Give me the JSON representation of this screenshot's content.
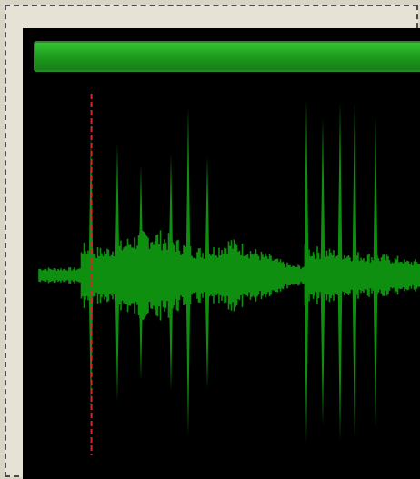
{
  "colors": {
    "waveform": "#0f8f0f",
    "playhead": "#cc2b2b",
    "background": "#000000",
    "progress": "#22a822"
  },
  "progress": {
    "fraction": 1.0
  },
  "waveform": {
    "playhead_position": 0.16
  }
}
